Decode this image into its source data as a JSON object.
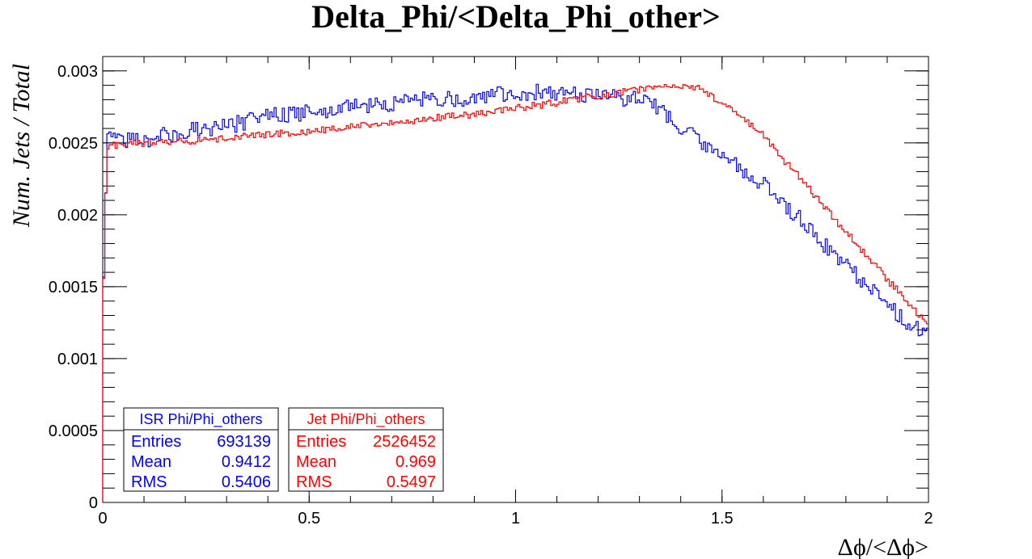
{
  "chart_data": {
    "type": "line",
    "title": "Delta_Phi/<Delta_Phi_other>",
    "xlabel": "Δϕ/<Δϕ>",
    "ylabel": "Num. Jets / Total",
    "xlim": [
      0,
      2
    ],
    "ylim": [
      0,
      0.0031
    ],
    "x_ticks": [
      "0",
      "0.5",
      "1",
      "1.5",
      "2"
    ],
    "y_ticks": [
      "0",
      "0.0005",
      "0.001",
      "0.0015",
      "0.002",
      "0.0025",
      "0.003"
    ],
    "series": [
      {
        "name": "ISR Phi/Phi_others",
        "color": "#0000ff",
        "x": [
          0,
          0.01,
          0.05,
          0.1,
          0.2,
          0.3,
          0.4,
          0.5,
          0.6,
          0.7,
          0.8,
          0.9,
          1.0,
          1.1,
          1.2,
          1.3,
          1.35,
          1.4,
          1.45,
          1.5,
          1.55,
          1.6,
          1.65,
          1.7,
          1.75,
          1.8,
          1.85,
          1.9,
          1.95,
          2.0
        ],
        "values": [
          0.00125,
          0.00252,
          0.00252,
          0.00252,
          0.00258,
          0.00262,
          0.00268,
          0.00272,
          0.00275,
          0.00278,
          0.0028,
          0.00282,
          0.00285,
          0.00285,
          0.00283,
          0.0028,
          0.00273,
          0.00262,
          0.0025,
          0.0024,
          0.00232,
          0.00222,
          0.00208,
          0.00195,
          0.00178,
          0.00165,
          0.00152,
          0.00138,
          0.00125,
          0.00115
        ]
      },
      {
        "name": "Jet Phi/Phi_others",
        "color": "#ff0000",
        "x": [
          0,
          0.01,
          0.05,
          0.1,
          0.2,
          0.3,
          0.4,
          0.5,
          0.6,
          0.7,
          0.8,
          0.9,
          1.0,
          1.1,
          1.2,
          1.3,
          1.35,
          1.4,
          1.45,
          1.5,
          1.55,
          1.6,
          1.65,
          1.7,
          1.75,
          1.8,
          1.85,
          1.9,
          1.95,
          2.0
        ],
        "values": [
          0.00125,
          0.00248,
          0.00249,
          0.0025,
          0.00251,
          0.00253,
          0.00256,
          0.00258,
          0.00261,
          0.00264,
          0.00267,
          0.0027,
          0.00274,
          0.00278,
          0.00283,
          0.00287,
          0.00289,
          0.0029,
          0.00287,
          0.00278,
          0.00268,
          0.00256,
          0.00238,
          0.00222,
          0.00205,
          0.00188,
          0.00172,
          0.00155,
          0.0014,
          0.00122
        ]
      }
    ],
    "stats": [
      {
        "title": "ISR Phi/Phi_others",
        "color": "#0000ff",
        "rows": [
          {
            "label": "Entries",
            "value": "693139"
          },
          {
            "label": "Mean",
            "value": "0.9412"
          },
          {
            "label": "RMS",
            "value": "0.5406"
          }
        ]
      },
      {
        "title": "Jet Phi/Phi_others",
        "color": "#ff0000",
        "rows": [
          {
            "label": "Entries",
            "value": "2526452"
          },
          {
            "label": "Mean",
            "value": "0.969"
          },
          {
            "label": "RMS",
            "value": "0.5497"
          }
        ]
      }
    ]
  }
}
